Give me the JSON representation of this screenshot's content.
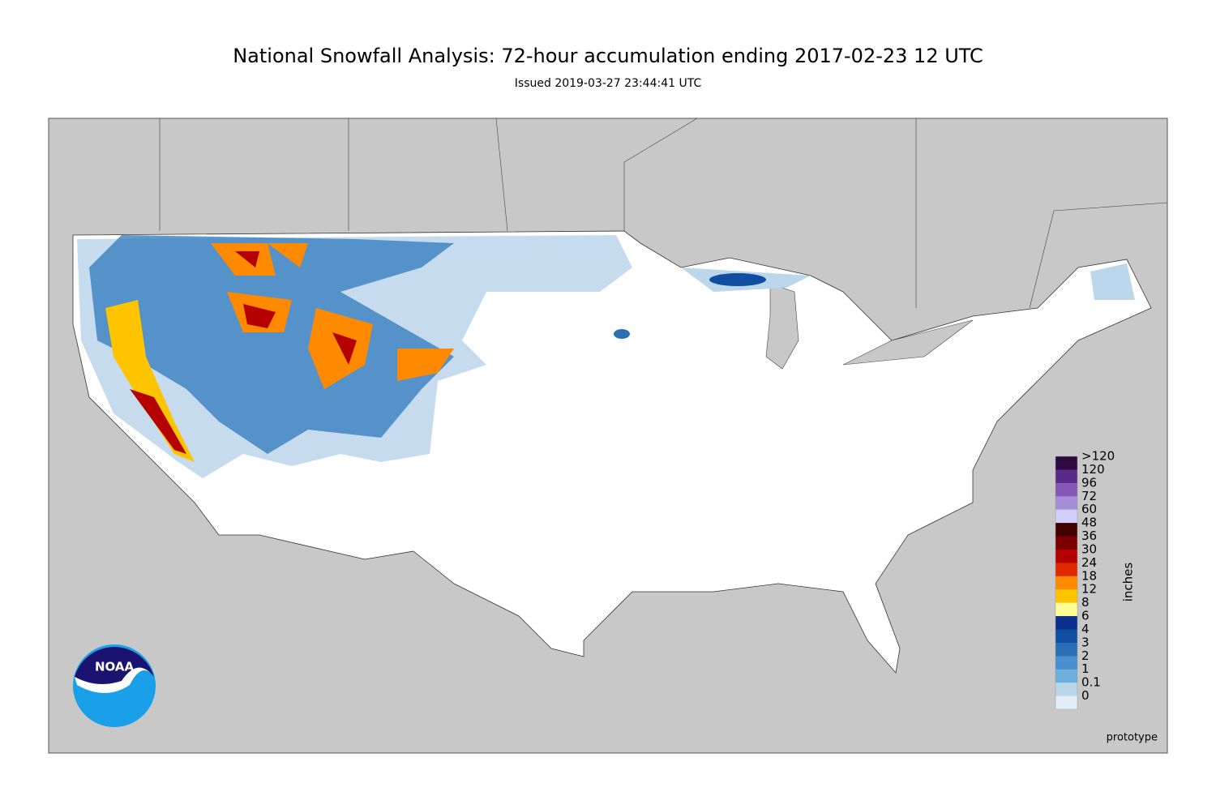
{
  "header": {
    "title": "National Snowfall Analysis: 72-hour accumulation ending 2017-02-23 12 UTC",
    "subtitle": "Issued 2019-03-27 23:44:41 UTC"
  },
  "legend": {
    "unit": "inches",
    "items": [
      {
        "label": ">120",
        "color": "#2d0a40"
      },
      {
        "label": "120",
        "color": "#5a2a88"
      },
      {
        "label": "96",
        "color": "#8458b8"
      },
      {
        "label": "72",
        "color": "#a78ed9"
      },
      {
        "label": "60",
        "color": "#d2d0fa"
      },
      {
        "label": "48",
        "color": "#420000"
      },
      {
        "label": "36",
        "color": "#7d0000"
      },
      {
        "label": "30",
        "color": "#b50000"
      },
      {
        "label": "24",
        "color": "#e02800"
      },
      {
        "label": "18",
        "color": "#ff8a00"
      },
      {
        "label": "12",
        "color": "#ffc400"
      },
      {
        "label": "8",
        "color": "#ffff96"
      },
      {
        "label": "6",
        "color": "#0c2f8e"
      },
      {
        "label": "4",
        "color": "#0f4ea0"
      },
      {
        "label": "3",
        "color": "#2a6fb6"
      },
      {
        "label": "2",
        "color": "#4a8fcd"
      },
      {
        "label": "1",
        "color": "#6daedd"
      },
      {
        "label": "0.1",
        "color": "#b8d5ea"
      },
      {
        "label": "0",
        "color": "#e3edf8"
      }
    ]
  },
  "logo": {
    "text": "NOAA"
  },
  "footer": {
    "note": "prototype"
  }
}
